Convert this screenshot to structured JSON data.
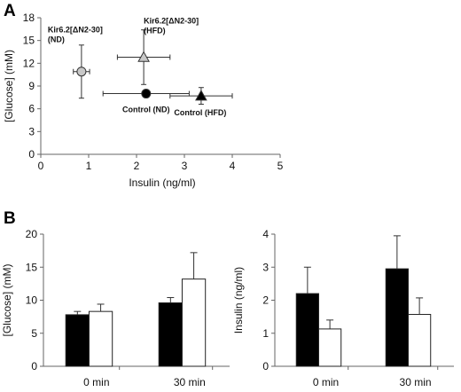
{
  "panels": {
    "a": "A",
    "b": "B"
  },
  "chart_data": [
    {
      "type": "scatter",
      "panel": "A",
      "xlabel": "Insulin (ng/ml)",
      "ylabel": "[Glucose] (mM)",
      "xlim": [
        0,
        5
      ],
      "ylim": [
        0,
        18
      ],
      "xticks": [
        "0",
        "1",
        "2",
        "3",
        "4",
        "5"
      ],
      "yticks": [
        "0",
        "3",
        "6",
        "9",
        "12",
        "15",
        "18"
      ],
      "points": [
        {
          "label": [
            "Kir6.2[ΔN2-30]",
            "(ND)"
          ],
          "x": 0.85,
          "y": 10.9,
          "xerr": 0.17,
          "yerr": 3.5,
          "marker": "circle",
          "fill": "#c8c8c8"
        },
        {
          "label": [
            "Kir6.2[ΔN2-30]",
            "(HFD)"
          ],
          "x": 2.15,
          "y": 12.8,
          "xerr": 0.55,
          "yerr": 3.6,
          "marker": "triangle",
          "fill": "#c8c8c8"
        },
        {
          "label": [
            "Control (ND)"
          ],
          "x": 2.2,
          "y": 8.0,
          "xerr": 0.9,
          "yerr": 0.0,
          "marker": "circle",
          "fill": "#000000"
        },
        {
          "label": [
            "Control (HFD)"
          ],
          "x": 3.35,
          "y": 7.7,
          "xerr": 0.65,
          "yerr": 1.1,
          "marker": "triangle",
          "fill": "#000000"
        }
      ]
    },
    {
      "type": "bar",
      "panel": "B-left",
      "ylabel": "[Glucose] (mM)",
      "categories": [
        "0 min",
        "30 min"
      ],
      "ylim": [
        0,
        20
      ],
      "yticks": [
        "0",
        "5",
        "10",
        "15",
        "20"
      ],
      "series": [
        {
          "fill": "#000000",
          "values": [
            7.8,
            9.6
          ],
          "errors": [
            0.5,
            0.8
          ]
        },
        {
          "fill": "#ffffff",
          "values": [
            8.3,
            13.2
          ],
          "errors": [
            1.1,
            4.0
          ]
        }
      ]
    },
    {
      "type": "bar",
      "panel": "B-right",
      "ylabel": "Insulin (ng/ml)",
      "categories": [
        "0 min",
        "30 min"
      ],
      "ylim": [
        0,
        4
      ],
      "yticks": [
        "0",
        "1",
        "2",
        "3",
        "4"
      ],
      "series": [
        {
          "fill": "#000000",
          "values": [
            2.2,
            2.95
          ],
          "errors": [
            0.8,
            1.0
          ]
        },
        {
          "fill": "#ffffff",
          "values": [
            1.13,
            1.57
          ],
          "errors": [
            0.27,
            0.5
          ]
        }
      ]
    }
  ]
}
